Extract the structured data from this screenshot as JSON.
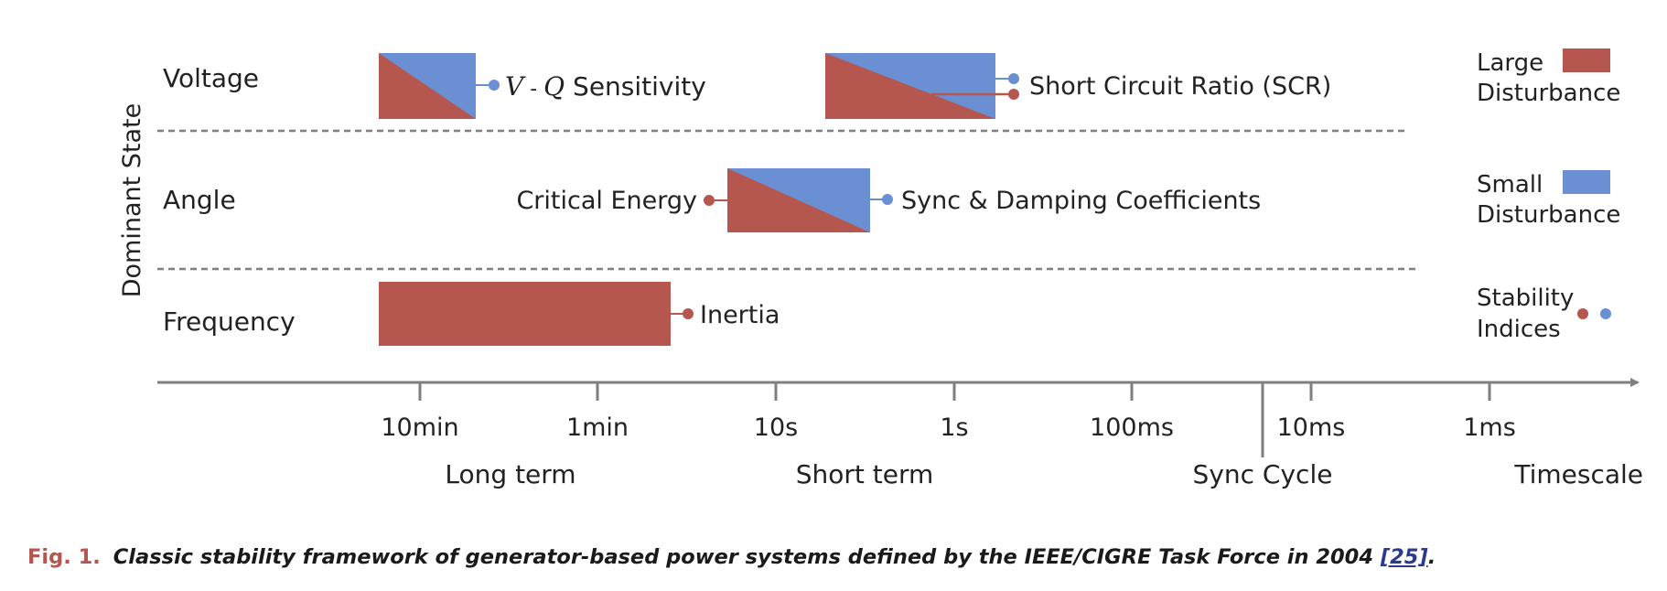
{
  "colors": {
    "large_disturbance": "#b5574f",
    "small_disturbance": "#6a8fd3",
    "axis": "#7f7f7f",
    "divider": "#7f7f7f"
  },
  "y_axis_label": "Dominant State",
  "rows": [
    {
      "name": "Voltage"
    },
    {
      "name": "Angle"
    },
    {
      "name": "Frequency"
    }
  ],
  "timescale": {
    "axis_label": "Timescale",
    "ticks": [
      "10min",
      "1min",
      "10s",
      "1s",
      "100ms",
      "10ms",
      "1ms"
    ],
    "regions": [
      "Long term",
      "Short term"
    ],
    "sync_marker": "Sync Cycle"
  },
  "indices": {
    "vq_symbol_v": "V",
    "vq_dash": " - ",
    "vq_symbol_q": "Q",
    "vq_text": "Sensitivity",
    "scr": "Short Circuit Ratio (SCR)",
    "critical_energy": "Critical Energy",
    "sync_damping": "Sync & Damping Coefficients",
    "inertia": "Inertia"
  },
  "legend": {
    "large": [
      "Large",
      "Disturbance"
    ],
    "small": [
      "Small",
      "Disturbance"
    ],
    "stability": [
      "Stability",
      "Indices"
    ]
  },
  "caption": {
    "fig": "Fig. 1.",
    "text": "Classic stability framework of generator-based power systems defined by the IEEE/CIGRE Task Force in 2004 ",
    "ref": "[25]",
    "end": "."
  }
}
